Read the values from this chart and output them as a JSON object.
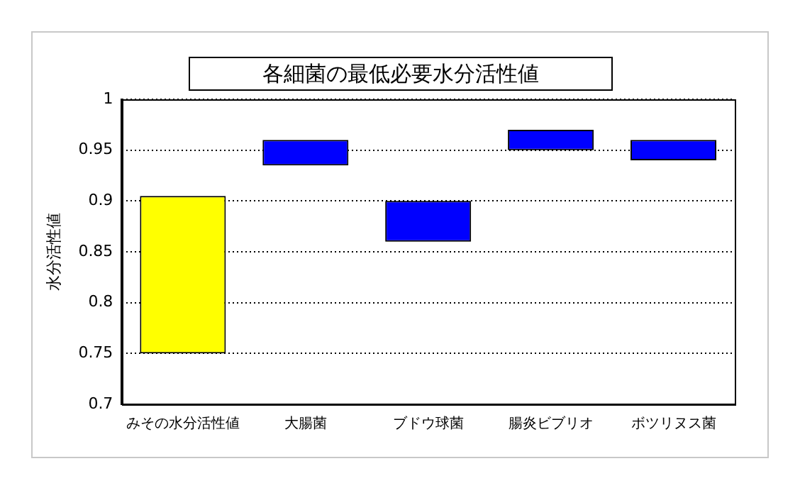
{
  "chart_data": {
    "type": "bar",
    "title": "各細菌の最低必要水分活性値",
    "ylabel": "水分活性値",
    "categories": [
      "みその水分活性値",
      "大腸菌",
      "ブドウ球菌",
      "腸炎ビブリオ",
      "ボツリヌス菌"
    ],
    "base": [
      0.75,
      0.935,
      0.86,
      0.95,
      0.94
    ],
    "values": [
      0.155,
      0.025,
      0.04,
      0.02,
      0.02
    ],
    "colors": [
      "#ffff00",
      "#0000ff",
      "#0000ff",
      "#0000ff",
      "#0000ff"
    ],
    "ylim": [
      0.7,
      1
    ],
    "yticks": [
      0.7,
      0.75,
      0.8,
      0.85,
      0.9,
      0.95,
      1
    ],
    "grid": "y"
  }
}
